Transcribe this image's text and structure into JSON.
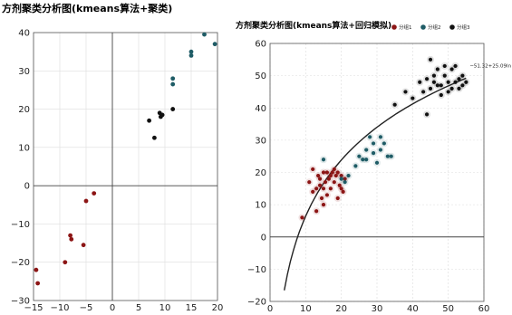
{
  "chart_data": [
    {
      "type": "scatter",
      "title": "方剂聚类分析图(kmeans算法+聚类)",
      "xlabel": "",
      "ylabel": "",
      "xlim": [
        -15,
        20
      ],
      "ylim": [
        -30,
        40
      ],
      "xticks": [
        "−15",
        "−10",
        "−5",
        "0",
        "5",
        "10",
        "15",
        "20"
      ],
      "yticks": [
        "−30",
        "−20",
        "−10",
        "0",
        "10",
        "20",
        "30",
        "40"
      ],
      "grid": true,
      "colors": [
        "#8c1515",
        "#1f5c66",
        "#111111"
      ],
      "series": [
        {
          "color": "#8c1515",
          "points": [
            [
              -14.5,
              -22
            ],
            [
              -14.2,
              -25.5
            ],
            [
              -9,
              -20
            ],
            [
              -8,
              -13
            ],
            [
              -7.8,
              -14
            ],
            [
              -5.5,
              -15.5
            ],
            [
              -5,
              -4
            ],
            [
              -3.5,
              -2
            ]
          ]
        },
        {
          "color": "#1f5c66",
          "points": [
            [
              11.5,
              28
            ],
            [
              11.5,
              26.5
            ],
            [
              15,
              35
            ],
            [
              15,
              34
            ],
            [
              17.5,
              39.5
            ],
            [
              19.5,
              37
            ]
          ]
        },
        {
          "color": "#111111",
          "points": [
            [
              7,
              17
            ],
            [
              8,
              12.5
            ],
            [
              9,
              19
            ],
            [
              9.2,
              18
            ],
            [
              9.5,
              18.5
            ],
            [
              11.5,
              20
            ]
          ]
        }
      ]
    },
    {
      "type": "scatter",
      "title": "方剂聚类分析图(kmeans算法+回归模拟)",
      "xlabel": "",
      "ylabel": "",
      "xlim": [
        0,
        60
      ],
      "ylim": [
        -20,
        60
      ],
      "xticks": [
        "0",
        "10",
        "20",
        "30",
        "40",
        "50",
        "60"
      ],
      "yticks": [
        "−20",
        "−10",
        "0",
        "10",
        "20",
        "30",
        "40",
        "50",
        "60"
      ],
      "grid": true,
      "legend_position": "top",
      "colors": [
        "#8c1515",
        "#1f5c66",
        "#111111"
      ],
      "series": [
        {
          "name": "分组1",
          "color": "#8c1515",
          "points": [
            [
              9,
              6
            ],
            [
              11,
              17
            ],
            [
              12,
              21
            ],
            [
              13,
              8
            ],
            [
              13.5,
              19
            ],
            [
              14,
              16
            ],
            [
              14.5,
              12
            ],
            [
              15,
              20
            ],
            [
              15.5,
              17
            ],
            [
              16,
              13
            ],
            [
              16.5,
              18
            ],
            [
              17,
              15
            ],
            [
              17.5,
              20
            ],
            [
              18,
              17
            ],
            [
              18.5,
              19
            ],
            [
              19,
              12
            ],
            [
              19.5,
              16
            ],
            [
              20,
              19
            ],
            [
              20.5,
              14
            ],
            [
              21,
              18
            ],
            [
              12,
              14
            ],
            [
              13,
              15
            ],
            [
              15,
              15
            ],
            [
              16,
              20
            ],
            [
              17,
              19
            ],
            [
              18,
              21
            ],
            [
              19,
              20
            ],
            [
              20,
              15
            ],
            [
              14,
              18
            ],
            [
              15,
              10
            ]
          ]
        },
        {
          "name": "分组2",
          "color": "#1f5c66",
          "points": [
            [
              15,
              24
            ],
            [
              20,
              18
            ],
            [
              21,
              17
            ],
            [
              22,
              19
            ],
            [
              25,
              25
            ],
            [
              26,
              24
            ],
            [
              27,
              27
            ],
            [
              28,
              31
            ],
            [
              29,
              29
            ],
            [
              30,
              23
            ],
            [
              31,
              27
            ],
            [
              32,
              29
            ],
            [
              33,
              25
            ],
            [
              27,
              24
            ],
            [
              29,
              26
            ],
            [
              34,
              25
            ],
            [
              24,
              22
            ],
            [
              31,
              31
            ]
          ]
        },
        {
          "name": "分组3",
          "color": "#111111",
          "points": [
            [
              35,
              41
            ],
            [
              38,
              45
            ],
            [
              40,
              43
            ],
            [
              42,
              48
            ],
            [
              44,
              38
            ],
            [
              45,
              55
            ],
            [
              46,
              50
            ],
            [
              47,
              52
            ],
            [
              48,
              47
            ],
            [
              49,
              53
            ],
            [
              50,
              48
            ],
            [
              51,
              46
            ],
            [
              52,
              53
            ],
            [
              53,
              49
            ],
            [
              54,
              47
            ],
            [
              55,
              48
            ],
            [
              45,
              46
            ],
            [
              47,
              47
            ],
            [
              49,
              50
            ],
            [
              50,
              45
            ],
            [
              51,
              52
            ],
            [
              52,
              48
            ],
            [
              53,
              46
            ],
            [
              48,
              44
            ],
            [
              46,
              48
            ],
            [
              43,
              45
            ],
            [
              44,
              49
            ],
            [
              54,
              50
            ]
          ]
        }
      ],
      "regression": {
        "label": "−51.32+25.09ln",
        "formula": "y = -51.32 + 25.09*ln(x)",
        "x_range": [
          4,
          55
        ],
        "color": "#222222"
      }
    }
  ]
}
